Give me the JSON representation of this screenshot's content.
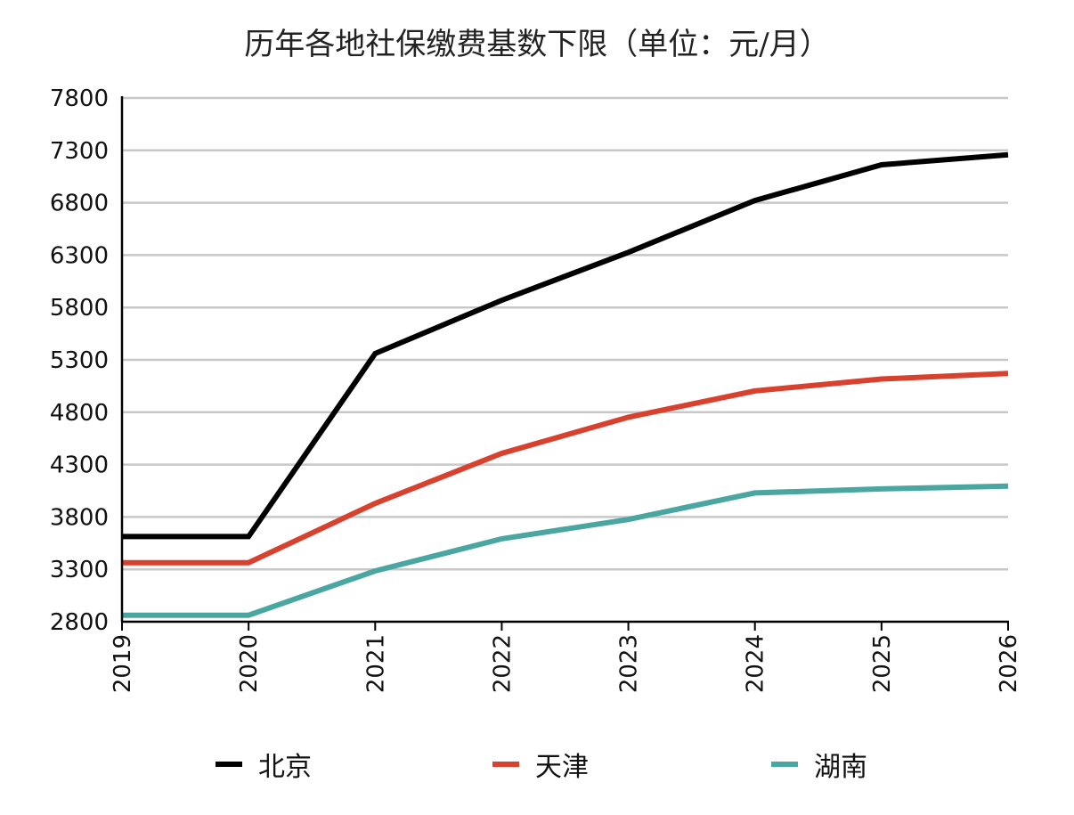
{
  "chart_data": {
    "type": "line",
    "title": "历年各地社保缴费基数下限（单位：元/月）",
    "xlabel": "",
    "ylabel": "",
    "x": [
      "2019",
      "2020",
      "2021",
      "2022",
      "2023",
      "2024",
      "2025",
      "2026"
    ],
    "ylim": [
      2800,
      7800
    ],
    "yticks": [
      2800,
      3300,
      3800,
      4300,
      4800,
      5300,
      5800,
      6300,
      6800,
      7300,
      7800
    ],
    "grid": true,
    "legend": "bottom",
    "series": [
      {
        "name": "北京",
        "color": "#000000",
        "values": [
          3613,
          3613,
          5360,
          5869,
          6326,
          6821,
          7162,
          7258
        ]
      },
      {
        "name": "天津",
        "color": "#d9412f",
        "values": [
          3364,
          3364,
          3930,
          4407,
          4752,
          5003,
          5117,
          5170
        ]
      },
      {
        "name": "湖南",
        "color": "#4aa6a0",
        "values": [
          2862,
          2862,
          3285,
          3592,
          3776,
          4030,
          4068,
          4095
        ]
      }
    ]
  }
}
